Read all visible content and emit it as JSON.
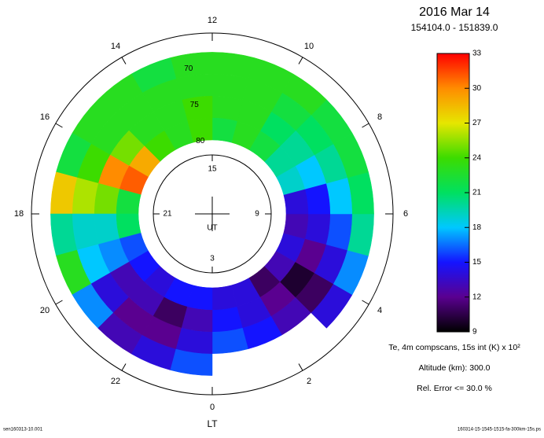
{
  "chart_data": {
    "type": "polar_heatmap",
    "title": "2016 Mar 14",
    "subtitle": "154104.0 - 151839.0",
    "angle_label": "LT",
    "angle_lim": [
      0,
      24
    ],
    "angle_ticks": [
      0,
      2,
      4,
      6,
      8,
      10,
      12,
      14,
      16,
      18,
      20,
      22
    ],
    "radial_lim": [
      70,
      80
    ],
    "radial_ticks": [
      70,
      75,
      80
    ],
    "inner_label": "UT",
    "inner_ticks": [
      15,
      9,
      3,
      21
    ],
    "lt_bins": [
      0,
      1,
      2,
      3,
      4,
      5,
      6,
      7,
      8,
      9,
      10,
      11,
      12,
      13,
      14,
      15,
      16,
      17,
      18,
      19,
      20,
      21,
      22,
      23,
      24
    ],
    "lat_bins": [
      68,
      71,
      74,
      77,
      80
    ],
    "values": [
      [
        null,
        16,
        15,
        14
      ],
      [
        null,
        15,
        14,
        14
      ],
      [
        null,
        13,
        12,
        11
      ],
      [
        14,
        11,
        10,
        13
      ],
      [
        17,
        14,
        12,
        14
      ],
      [
        20,
        16,
        14,
        13
      ],
      [
        21,
        18,
        15,
        14
      ],
      [
        22,
        20,
        18,
        19
      ],
      [
        22,
        21,
        20,
        20
      ],
      [
        23,
        22,
        21,
        22
      ],
      [
        23,
        23,
        23,
        23
      ],
      [
        23,
        23,
        23,
        22
      ],
      [
        23,
        23,
        24,
        24
      ],
      [
        22,
        23,
        23,
        23
      ],
      [
        23,
        23,
        23,
        24
      ],
      [
        23,
        23,
        25,
        29
      ],
      [
        22,
        24,
        30,
        31
      ],
      [
        28,
        26,
        25,
        22
      ],
      [
        20,
        19,
        19,
        21
      ],
      [
        23,
        18,
        17,
        16
      ],
      [
        17,
        14,
        13,
        15
      ],
      [
        13,
        12,
        13,
        14
      ],
      [
        14,
        12,
        11,
        15
      ],
      [
        16,
        14,
        13,
        15
      ]
    ],
    "colorbar": {
      "lim": [
        9,
        33
      ],
      "ticks": [
        9,
        12,
        15,
        18,
        21,
        24,
        27,
        30,
        33
      ],
      "label": "Te, 4m compscans, 15s int (K) x 10²",
      "colors": [
        "#000000",
        "#5a0090",
        "#1414ff",
        "#00c8ff",
        "#00e060",
        "#3cdc00",
        "#e6e600",
        "#ff8c00",
        "#ff0000"
      ]
    },
    "notes": [
      "Altitude (km): 300.0",
      "Rel. Error <= 30.0 %"
    ],
    "footer_left": "sen160313-10.001",
    "footer_right": "160314-15-1545-1515-fa-300km-15s.ps"
  }
}
